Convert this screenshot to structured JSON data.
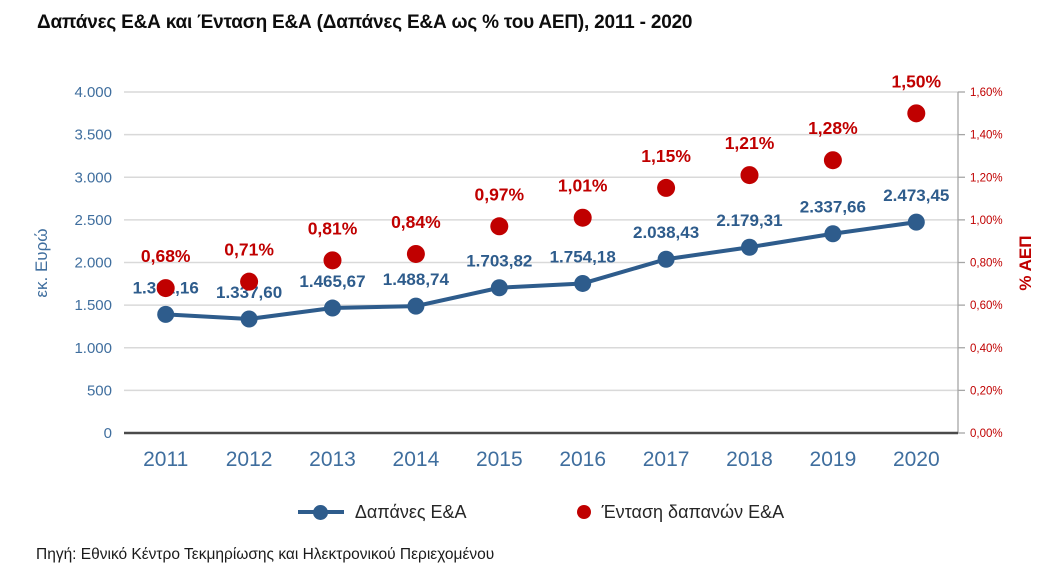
{
  "title": "Δαπάνες Ε&Α και Ένταση Ε&Α (Δαπάνες Ε&Α ως % του ΑΕΠ), 2011 - 2020",
  "source": "Πηγή: Εθνικό Κέντρο Τεκμηρίωσης και Ηλεκτρονικού Περιεχομένου",
  "colors": {
    "blue_series": "#2E5C8C",
    "blue_axis_text": "#3F6E9E",
    "red_series": "#C00000",
    "gridline": "#D9D9D9",
    "zero_axis": "#4a4a4a",
    "right_axis_line": "#A6A6A6",
    "legend_text": "#262626"
  },
  "chart_data": {
    "type": "line",
    "title": "Δαπάνες Ε&Α και Ένταση Ε&Α (Δαπάνες Ε&Α ως % του ΑΕΠ), 2011 - 2020",
    "categories": [
      "2011",
      "2012",
      "2013",
      "2014",
      "2015",
      "2016",
      "2017",
      "2018",
      "2019",
      "2020"
    ],
    "series": [
      {
        "name": "Δαπάνες Ε&Α",
        "type": "line",
        "axis": "left",
        "values": [
          1391.16,
          1337.6,
          1465.67,
          1488.74,
          1703.82,
          1754.18,
          2038.43,
          2179.31,
          2337.66,
          2473.45
        ],
        "labels": [
          "1.391,16",
          "1.337,60",
          "1.465,67",
          "1.488,74",
          "1.703,82",
          "1.754,18",
          "2.038,43",
          "2.179,31",
          "2.337,66",
          "2.473,45"
        ]
      },
      {
        "name": "Ένταση δαπανών Ε&Α",
        "type": "scatter",
        "axis": "right",
        "values": [
          0.68,
          0.71,
          0.81,
          0.84,
          0.97,
          1.01,
          1.15,
          1.21,
          1.28,
          1.5
        ],
        "labels": [
          "0,68%",
          "0,71%",
          "0,81%",
          "0,84%",
          "0,97%",
          "1,01%",
          "1,15%",
          "1,21%",
          "1,28%",
          "1,50%"
        ]
      }
    ],
    "left_axis": {
      "title": "εκ. Ευρώ",
      "min": 0,
      "max": 4000,
      "step": 500,
      "ticks": [
        "0",
        "500",
        "1.000",
        "1.500",
        "2.000",
        "2.500",
        "3.000",
        "3.500",
        "4.000"
      ]
    },
    "right_axis": {
      "title": "% ΑΕΠ",
      "min": 0,
      "max": 1.6,
      "step": 0.2,
      "ticks": [
        "0,00%",
        "0,20%",
        "0,40%",
        "0,60%",
        "0,80%",
        "1,00%",
        "1,20%",
        "1,40%",
        "1,60%"
      ]
    },
    "x_axis": {
      "labels": [
        "2011",
        "2012",
        "2013",
        "2014",
        "2015",
        "2016",
        "2017",
        "2018",
        "2019",
        "2020"
      ]
    },
    "grid": true,
    "legend_position": "bottom"
  }
}
